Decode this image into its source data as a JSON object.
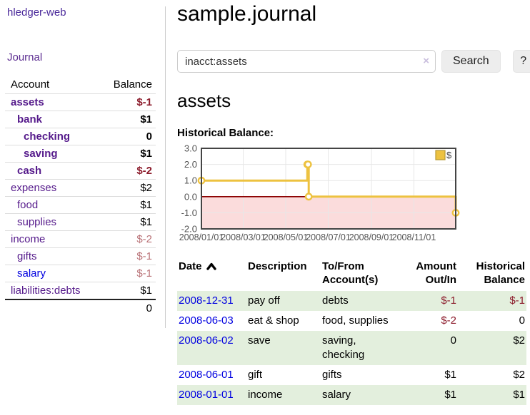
{
  "app": {
    "title": "hledger-web"
  },
  "colors": {
    "link_visited": "#551a8b",
    "link_unvisited": "#0000e0",
    "negative_strong": "#8c1c2c",
    "negative_dim": "#b97277",
    "row_stripe_green": "#e3efdd"
  },
  "sidebar": {
    "journal_link": "Journal",
    "table": {
      "account_header": "Account",
      "balance_header": "Balance"
    },
    "accounts": [
      {
        "name": "assets",
        "depth": 1,
        "bold": true,
        "balance": "$-1",
        "link": "visited"
      },
      {
        "name": "bank",
        "depth": 2,
        "bold": true,
        "balance": "$1",
        "link": "visited"
      },
      {
        "name": "checking",
        "depth": 3,
        "bold": true,
        "balance": "0",
        "link": "visited"
      },
      {
        "name": "saving",
        "depth": 3,
        "bold": true,
        "balance": "$1",
        "link": "visited"
      },
      {
        "name": "cash",
        "depth": 2,
        "bold": true,
        "balance": "$-2",
        "link": "visited"
      },
      {
        "name": "expenses",
        "depth": 1,
        "bold": false,
        "balance": "$2",
        "link": "visited"
      },
      {
        "name": "food",
        "depth": 2,
        "bold": false,
        "balance": "$1",
        "link": "visited"
      },
      {
        "name": "supplies",
        "depth": 2,
        "bold": false,
        "balance": "$1",
        "link": "visited"
      },
      {
        "name": "income",
        "depth": 1,
        "bold": false,
        "balance": "$-2",
        "link": "visited"
      },
      {
        "name": "gifts",
        "depth": 2,
        "bold": false,
        "balance": "$-1",
        "link": "visited"
      },
      {
        "name": "salary",
        "depth": 2,
        "bold": false,
        "balance": "$-1",
        "link": "unvisited"
      },
      {
        "name": "liabilities:debts",
        "depth": 1,
        "bold": false,
        "balance": "$1",
        "link": "visited"
      }
    ],
    "total": "0"
  },
  "header": {
    "title": "sample.journal"
  },
  "search": {
    "value": "inacct:assets",
    "clear_icon": "×",
    "button": "Search",
    "help_button": "?"
  },
  "account_page": {
    "heading": "assets",
    "chart_label": "Historical Balance:"
  },
  "chart_data": {
    "type": "line",
    "line_style": "step-after",
    "title": "Historical Balance",
    "x_range": [
      "2008-01-01",
      "2008-12-31"
    ],
    "ylim": [
      -2,
      3
    ],
    "y_ticks": [
      3.0,
      2.0,
      1.0,
      0.0,
      -1.0,
      -2.0
    ],
    "x_ticks": [
      "2008/01/01",
      "2008/03/01",
      "2008/05/01",
      "2008/07/01",
      "2008/09/01",
      "2008/11/01"
    ],
    "series": [
      {
        "name": "$",
        "color": "#edc240",
        "marker_fill": "#ffffff",
        "points": [
          [
            "2008-01-01",
            1
          ],
          [
            "2008-06-01",
            2
          ],
          [
            "2008-06-02",
            2
          ],
          [
            "2008-06-03",
            0
          ],
          [
            "2008-12-31",
            -1
          ]
        ]
      }
    ],
    "legend": {
      "label": "$",
      "position": "top-right"
    },
    "grid": true,
    "gridline_color": "#e7e7e7",
    "border_color": "#444444",
    "zero_line_color": "#8b0000",
    "negative_region_color": "#fbdcdc",
    "tick_label_color": "#545454"
  },
  "transactions": {
    "columns": [
      {
        "lines": [
          "Date"
        ],
        "align": "left",
        "sorted_asc": true
      },
      {
        "lines": [
          "Description"
        ],
        "align": "left"
      },
      {
        "lines": [
          "To/From",
          "Account(s)"
        ],
        "align": "left"
      },
      {
        "lines": [
          "Amount",
          "Out/In"
        ],
        "align": "right"
      },
      {
        "lines": [
          "Historical",
          "Balance"
        ],
        "align": "right"
      }
    ],
    "rows": [
      {
        "date": "2008-12-31",
        "description": "pay off",
        "accounts": [
          "debts"
        ],
        "amount": "$-1",
        "balance": "$-1"
      },
      {
        "date": "2008-06-03",
        "description": "eat & shop",
        "accounts": [
          "food, supplies"
        ],
        "amount": "$-2",
        "balance": "0"
      },
      {
        "date": "2008-06-02",
        "description": "save",
        "accounts": [
          "saving,",
          "checking"
        ],
        "amount": "0",
        "balance": "$2"
      },
      {
        "date": "2008-06-01",
        "description": "gift",
        "accounts": [
          "gifts"
        ],
        "amount": "$1",
        "balance": "$2"
      },
      {
        "date": "2008-01-01",
        "description": "income",
        "accounts": [
          "salary"
        ],
        "amount": "$1",
        "balance": "$1"
      }
    ]
  }
}
